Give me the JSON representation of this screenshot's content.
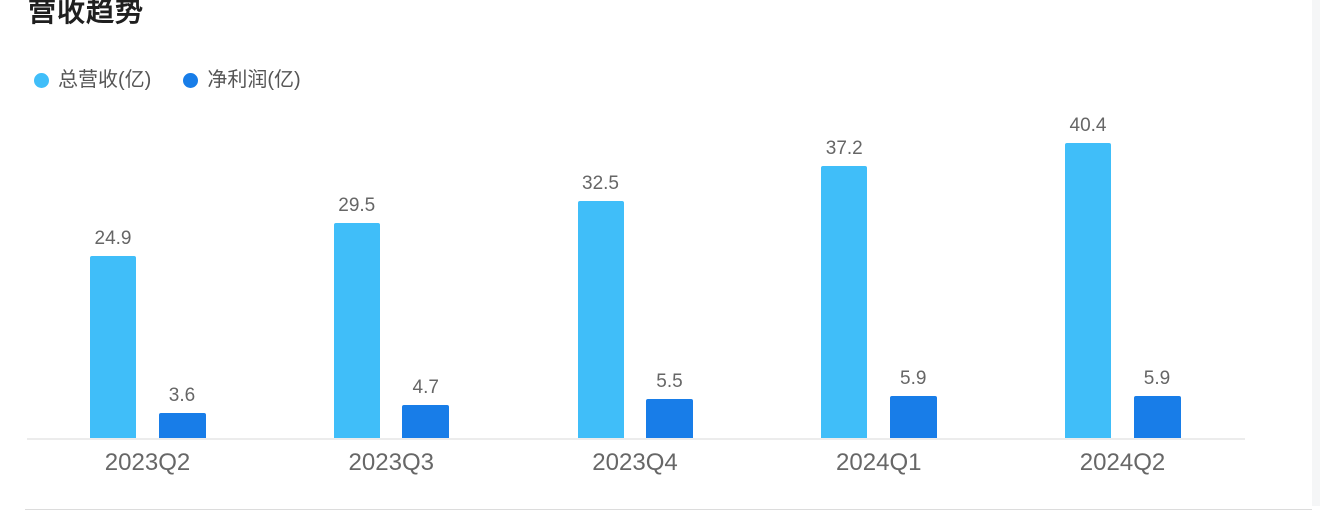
{
  "header": {
    "title": "营收趋势"
  },
  "chart_data": {
    "type": "bar",
    "title": "营收趋势",
    "categories": [
      "2023Q2",
      "2023Q3",
      "2023Q4",
      "2024Q1",
      "2024Q2"
    ],
    "series": [
      {
        "name": "总营收(亿)",
        "color": "#40BEF9",
        "values": [
          24.9,
          29.5,
          32.5,
          37.2,
          40.4
        ]
      },
      {
        "name": "净利润(亿)",
        "color": "#187DE8",
        "values": [
          3.6,
          4.7,
          5.5,
          5.9,
          5.9
        ]
      }
    ],
    "xlabel": "",
    "ylabel": "",
    "ylim": [
      0,
      45
    ],
    "grid": false,
    "legend_position": "top-left",
    "value_labels": true,
    "value_label_color": "#666666",
    "axis_line_color": "#ececec",
    "category_label_color": "#676767"
  }
}
